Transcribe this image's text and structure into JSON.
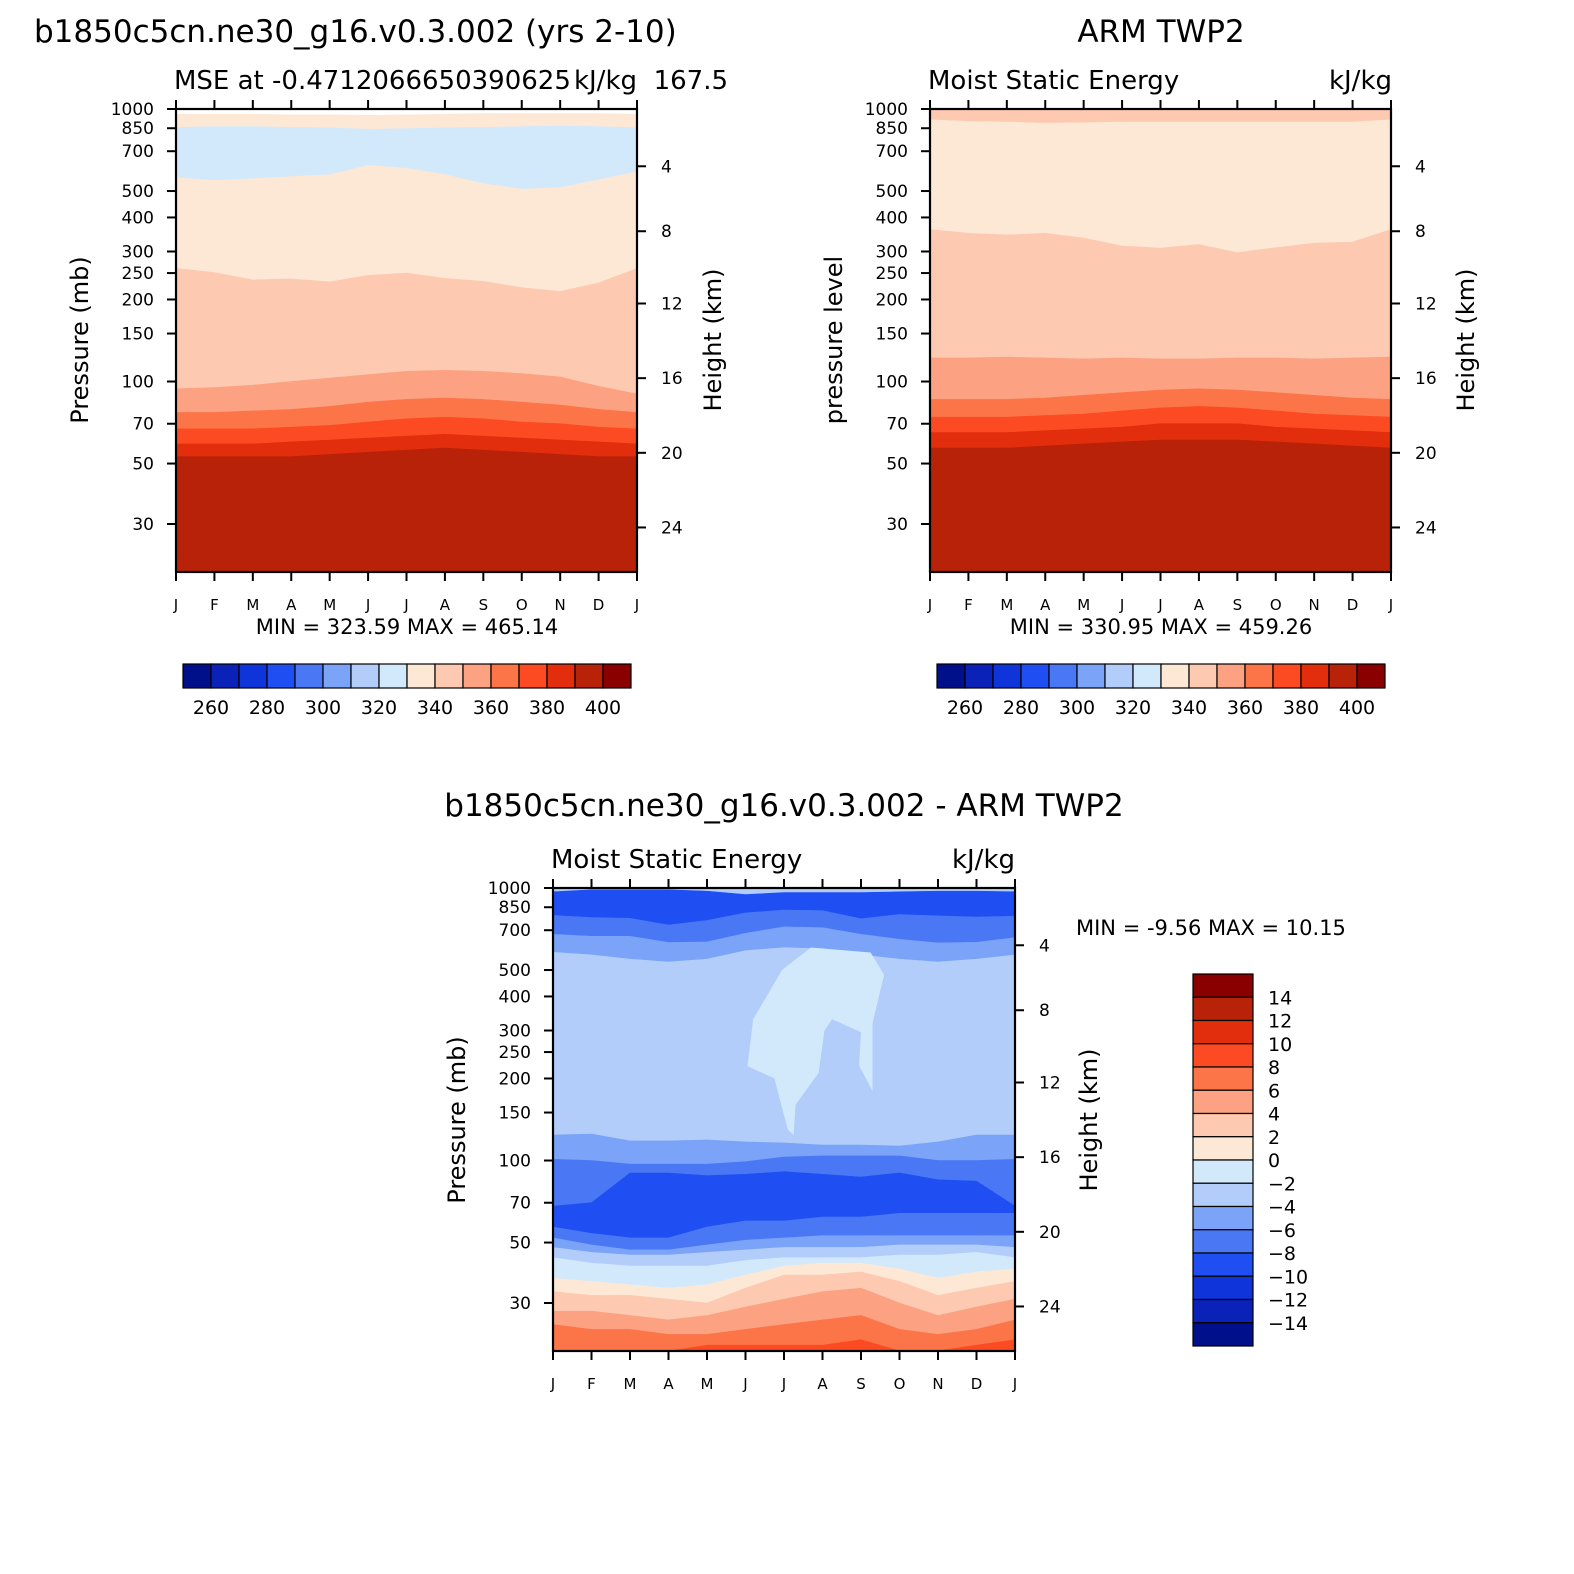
{
  "chart_data": [
    {
      "type": "heatmap",
      "title": "b1850c5cn.ne30_g16.v0.3.002 (yrs 2-10)",
      "subtitle_left": "MSE at -0.4712066650390625",
      "subtitle_right": "kJ/kg",
      "subtitle_overlap": "167.5",
      "ylabel": "Pressure (mb)",
      "ylabel_right": "Height (km)",
      "x_ticks": [
        "J",
        "F",
        "M",
        "A",
        "M",
        "J",
        "J",
        "A",
        "S",
        "O",
        "N",
        "D",
        "J"
      ],
      "y_ticks": [
        30,
        50,
        70,
        100,
        150,
        200,
        250,
        300,
        400,
        500,
        700,
        850,
        1000
      ],
      "y_right_ticks": [
        24,
        20,
        16,
        12,
        8,
        4
      ],
      "y_scale": "log",
      "ylim": [
        1000,
        20
      ],
      "stats": "MIN =  323.59  MAX =  465.14",
      "colorbar": {
        "orientation": "horizontal",
        "levels": [
          250,
          260,
          270,
          280,
          290,
          300,
          310,
          320,
          330,
          340,
          350,
          360,
          370,
          380,
          390,
          400
        ],
        "labels": [
          "260",
          "280",
          "300",
          "320",
          "340",
          "360",
          "380",
          "400"
        ]
      },
      "layers": [
        {
          "color": "#fde8d5",
          "boundary_hPa": [
            957,
            957,
            957,
            952,
            952,
            948,
            952,
            957,
            962,
            962,
            962,
            962,
            957
          ]
        },
        {
          "color": "#d2e9fc",
          "boundary_hPa": [
            856,
            862,
            862,
            856,
            852,
            843,
            847,
            852,
            856,
            862,
            866,
            862,
            852
          ]
        },
        {
          "color": "#fde8d5",
          "boundary_hPa": [
            560,
            547,
            555,
            565,
            574,
            621,
            606,
            575,
            532,
            508,
            515,
            550,
            589
          ]
        },
        {
          "color": "#fec9b1",
          "boundary_hPa": [
            260,
            251,
            236,
            238,
            232,
            245,
            250,
            239,
            233,
            221,
            214,
            230,
            260
          ]
        },
        {
          "color": "#fca282",
          "boundary_hPa": [
            94,
            95,
            97,
            100,
            103,
            106,
            109,
            110,
            109,
            107,
            104,
            96,
            90
          ]
        },
        {
          "color": "#fc7548",
          "boundary_hPa": [
            77,
            77,
            78,
            79,
            81,
            84,
            86,
            87,
            86,
            84,
            82,
            79,
            77
          ]
        },
        {
          "color": "#fc4b22",
          "boundary_hPa": [
            67,
            67,
            67,
            68,
            69,
            71,
            73,
            74,
            73,
            71,
            70,
            68,
            67
          ]
        },
        {
          "color": "#e22e0c",
          "boundary_hPa": [
            59,
            59,
            59,
            60,
            61,
            62,
            63,
            64,
            63,
            62,
            61,
            60,
            59
          ]
        },
        {
          "color": "#b82209",
          "boundary_hPa": [
            53,
            53,
            53,
            53,
            54,
            55,
            56,
            57,
            56,
            55,
            54,
            53,
            53
          ]
        },
        {
          "color": "#8a0000",
          "boundary_hPa": [
            20,
            20,
            20,
            20,
            20,
            20,
            20,
            20,
            20,
            20,
            20,
            20,
            20
          ]
        }
      ]
    },
    {
      "type": "heatmap",
      "title": "ARM TWP2",
      "subtitle_left": "Moist Static Energy",
      "subtitle_right": "kJ/kg",
      "ylabel": "pressure level",
      "ylabel_right": "Height (km)",
      "x_ticks": [
        "J",
        "F",
        "M",
        "A",
        "M",
        "J",
        "J",
        "A",
        "S",
        "O",
        "N",
        "D",
        "J"
      ],
      "y_ticks": [
        30,
        50,
        70,
        100,
        150,
        200,
        250,
        300,
        400,
        500,
        700,
        850,
        1000
      ],
      "y_right_ticks": [
        24,
        20,
        16,
        12,
        8,
        4
      ],
      "y_scale": "log",
      "ylim": [
        1000,
        20
      ],
      "stats": "MIN =  330.95  MAX =  459.26",
      "colorbar": {
        "orientation": "horizontal",
        "levels": [
          250,
          260,
          270,
          280,
          290,
          300,
          310,
          320,
          330,
          340,
          350,
          360,
          370,
          380,
          390,
          400
        ],
        "labels": [
          "260",
          "280",
          "300",
          "320",
          "340",
          "360",
          "380",
          "400"
        ]
      },
      "layers": [
        {
          "color": "#fec9b1",
          "boundary_hPa": [
            1000,
            1000,
            1000,
            1000,
            1000,
            1000,
            1000,
            1000,
            1000,
            1000,
            1000,
            1000,
            1000
          ]
        },
        {
          "color": "#fde8d5",
          "boundary_hPa": [
            913,
            900,
            896,
            887,
            891,
            896,
            896,
            896,
            896,
            896,
            896,
            896,
            913
          ]
        },
        {
          "color": "#fec9b1",
          "boundary_hPa": [
            361,
            350,
            345,
            350,
            336,
            314,
            309,
            318,
            297,
            310,
            322,
            325,
            361
          ]
        },
        {
          "color": "#fca282",
          "boundary_hPa": [
            122,
            122,
            123,
            122,
            121,
            122,
            121,
            121,
            122,
            122,
            121,
            122,
            123
          ]
        },
        {
          "color": "#fc7548",
          "boundary_hPa": [
            86,
            86,
            86,
            87,
            89,
            91,
            93,
            94,
            93,
            91,
            89,
            87,
            86
          ]
        },
        {
          "color": "#fc4b22",
          "boundary_hPa": [
            74,
            74,
            74,
            75,
            76,
            78,
            80,
            81,
            80,
            78,
            76,
            75,
            74
          ]
        },
        {
          "color": "#e22e0c",
          "boundary_hPa": [
            65,
            65,
            65,
            66,
            67,
            68,
            70,
            70,
            70,
            68,
            67,
            66,
            65
          ]
        },
        {
          "color": "#b82209",
          "boundary_hPa": [
            57,
            57,
            57,
            58,
            59,
            60,
            61,
            61,
            61,
            60,
            59,
            58,
            57
          ]
        },
        {
          "color": "#8a0000",
          "boundary_hPa": [
            20,
            20,
            20,
            20,
            20,
            20,
            20,
            20,
            20,
            20,
            20,
            20,
            20
          ]
        }
      ]
    },
    {
      "type": "heatmap",
      "title": "b1850c5cn.ne30_g16.v0.3.002 - ARM TWP2",
      "subtitle_left": "Moist Static Energy",
      "subtitle_right": "kJ/kg",
      "ylabel": "Pressure (mb)",
      "ylabel_right": "Height (km)",
      "x_ticks": [
        "J",
        "F",
        "M",
        "A",
        "M",
        "J",
        "J",
        "A",
        "S",
        "O",
        "N",
        "D",
        "J"
      ],
      "y_ticks": [
        30,
        50,
        70,
        100,
        150,
        200,
        250,
        300,
        400,
        500,
        700,
        850,
        1000
      ],
      "y_right_ticks": [
        24,
        20,
        16,
        12,
        8,
        4
      ],
      "y_scale": "log",
      "ylim": [
        1000,
        20
      ],
      "stats": "MIN =   -9.56  MAX =   10.15",
      "colorbar": {
        "orientation": "vertical",
        "levels": [
          16,
          14,
          12,
          10,
          8,
          6,
          4,
          2,
          0,
          -2,
          -4,
          -6,
          -8,
          -10,
          -12,
          -14,
          -16
        ],
        "labels": [
          "14",
          "12",
          "10",
          "8",
          "6",
          "4",
          "2",
          "0",
          "−2",
          "−4",
          "−6",
          "−8",
          "−10",
          "−12",
          "−14"
        ]
      },
      "layers": [
        {
          "color": "#b3cdfb",
          "boundary_hPa": [
            1000,
            1000,
            1000,
            1000,
            1000,
            1000,
            1000,
            1000,
            1000,
            1000,
            1000,
            1000,
            1000
          ]
        },
        {
          "color": "#1f4ff2",
          "boundary_hPa": [
            968,
            985,
            985,
            985,
            974,
            946,
            962,
            962,
            962,
            968,
            974,
            974,
            968
          ]
        },
        {
          "color": "#4a78f4",
          "boundary_hPa": [
            793,
            779,
            774,
            731,
            760,
            810,
            830,
            826,
            771,
            799,
            790,
            782,
            788
          ]
        },
        {
          "color": "#7ba3f7",
          "boundary_hPa": [
            676,
            665,
            665,
            631,
            634,
            682,
            720,
            715,
            676,
            648,
            629,
            632,
            657
          ]
        },
        {
          "color": "#b3cdfb",
          "boundary_hPa": [
            581,
            568,
            548,
            535,
            548,
            589,
            604,
            598,
            568,
            548,
            535,
            548,
            568
          ]
        },
        {
          "color": "#7ba3f7",
          "boundary_hPa": [
            124,
            125,
            118,
            118,
            119,
            117,
            116,
            114,
            114,
            113,
            117,
            124,
            124
          ]
        },
        {
          "color": "#4a78f4",
          "boundary_hPa": [
            101,
            100,
            97,
            97,
            97,
            99,
            103,
            104,
            104,
            104,
            100,
            100,
            101
          ]
        },
        {
          "color": "#1f4ff2",
          "boundary_hPa": [
            68,
            70,
            90,
            90,
            88,
            89,
            91,
            89,
            87,
            90,
            85,
            84,
            68
          ]
        },
        {
          "color": "#4a78f4",
          "boundary_hPa": [
            57,
            54,
            52,
            52,
            57,
            60,
            60,
            62,
            62,
            64,
            64,
            64,
            64
          ]
        },
        {
          "color": "#7ba3f7",
          "boundary_hPa": [
            52,
            49,
            47,
            47,
            49,
            51,
            52,
            53,
            53,
            53,
            53,
            53,
            53
          ]
        },
        {
          "color": "#b3cdfb",
          "boundary_hPa": [
            48,
            46,
            45,
            45,
            46,
            47,
            48,
            48,
            48,
            49,
            49,
            49,
            48
          ]
        },
        {
          "color": "#d2e9fc",
          "boundary_hPa": [
            44,
            42,
            41,
            41,
            41,
            43,
            44,
            44,
            44,
            45,
            45,
            46,
            44
          ]
        },
        {
          "color": "#fde8d5",
          "boundary_hPa": [
            37,
            36,
            35,
            34,
            35,
            38,
            41,
            42,
            42,
            40,
            37,
            39,
            40
          ]
        },
        {
          "color": "#fec9b1",
          "boundary_hPa": [
            33,
            32,
            32,
            31,
            30,
            34,
            38,
            38,
            39,
            36,
            32,
            34,
            36
          ]
        },
        {
          "color": "#fca282",
          "boundary_hPa": [
            28,
            28,
            27,
            26,
            27,
            29,
            31,
            33,
            34,
            30,
            27,
            29,
            31
          ]
        },
        {
          "color": "#fc7548",
          "boundary_hPa": [
            25,
            24,
            24,
            23,
            23,
            24,
            25,
            26,
            27,
            24,
            23,
            24,
            26
          ]
        },
        {
          "color": "#fc4b22",
          "boundary_hPa": [
            20,
            20,
            20,
            20,
            21,
            21,
            21,
            21,
            22,
            20,
            20,
            21,
            22
          ]
        }
      ],
      "feature_polygons": [
        {
          "name": "near-zero-island",
          "color": "#d2e9fc",
          "points": [
            [
              5.95,
              500
            ],
            [
              5.2,
              330
            ],
            [
              5.05,
              222
            ],
            [
              5.75,
              200
            ],
            [
              6.1,
              130
            ],
            [
              6.25,
              124
            ],
            [
              6.3,
              160
            ],
            [
              6.9,
              210
            ],
            [
              7.05,
              300
            ],
            [
              7.25,
              330
            ],
            [
              8.0,
              296
            ],
            [
              7.95,
              223
            ],
            [
              8.3,
              180
            ],
            [
              8.3,
              320
            ],
            [
              8.6,
              480
            ],
            [
              8.25,
              580
            ],
            [
              6.7,
              605
            ]
          ]
        }
      ]
    }
  ],
  "colors": {
    "cb_blue": [
      "#000f8a",
      "#0a22b8",
      "#0f34d9",
      "#1f4ff2",
      "#4a78f4",
      "#7ba3f7",
      "#b3cdfb",
      "#d2e9fc"
    ],
    "cb_red": [
      "#fde8d5",
      "#fec9b1",
      "#fca282",
      "#fc7548",
      "#fc4b22",
      "#e22e0c",
      "#b82209",
      "#8a0000"
    ]
  }
}
